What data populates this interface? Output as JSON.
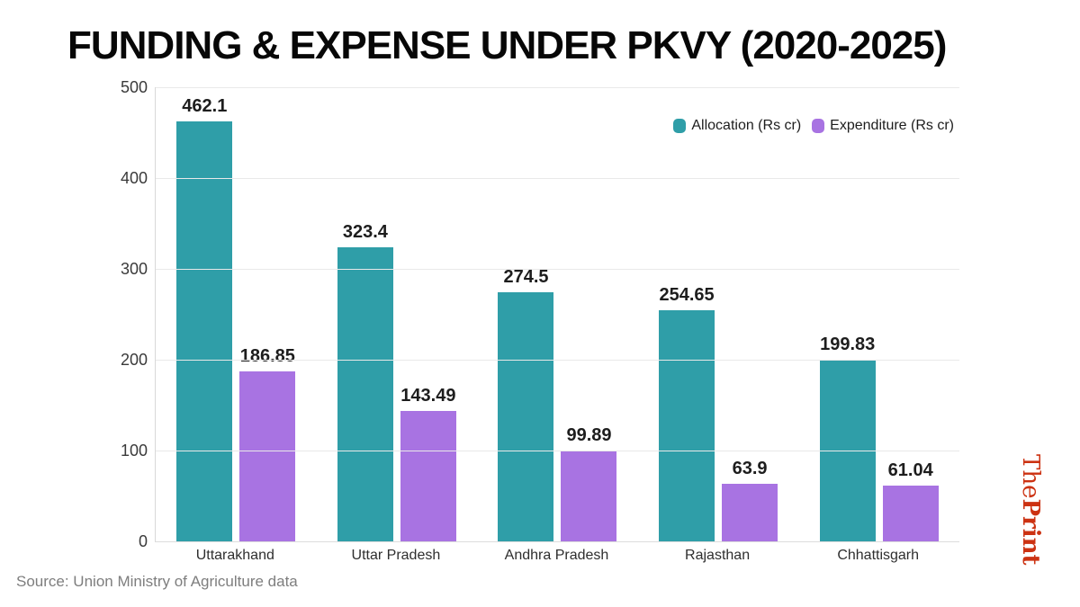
{
  "title": "FUNDING & EXPENSE UNDER PKVY (2020-2025)",
  "source": "Source: Union Ministry of Agriculture data",
  "branding": {
    "the": "The",
    "print": "Print",
    "color": "#cc3212"
  },
  "colors": {
    "allocation": "#2f9ea8",
    "expenditure": "#a873e2",
    "gridline": "#e9e9e9",
    "axis_line": "#d9d9d9",
    "value_label": "#1d1d1d",
    "tick_label": "#3a3a3a",
    "source_text": "#7e7e7e"
  },
  "chart_data": {
    "type": "bar",
    "title": "FUNDING & EXPENSE UNDER PKVY (2020-2025)",
    "categories": [
      "Uttarakhand",
      "Uttar Pradesh",
      "Andhra Pradesh",
      "Rajasthan",
      "Chhattisgarh"
    ],
    "series": [
      {
        "name": "Allocation (Rs cr)",
        "color": "#2f9ea8",
        "values": [
          462.1,
          323.4,
          274.5,
          254.65,
          199.83
        ]
      },
      {
        "name": "Expenditure (Rs cr)",
        "color": "#a873e2",
        "values": [
          186.85,
          143.49,
          99.89,
          63.9,
          61.04
        ]
      }
    ],
    "xlabel": "",
    "ylabel": "",
    "ylim": [
      0,
      500
    ],
    "yticks": [
      0,
      100,
      200,
      300,
      400,
      500
    ],
    "grid": true,
    "legend_position": "top-right",
    "value_labels": true
  }
}
